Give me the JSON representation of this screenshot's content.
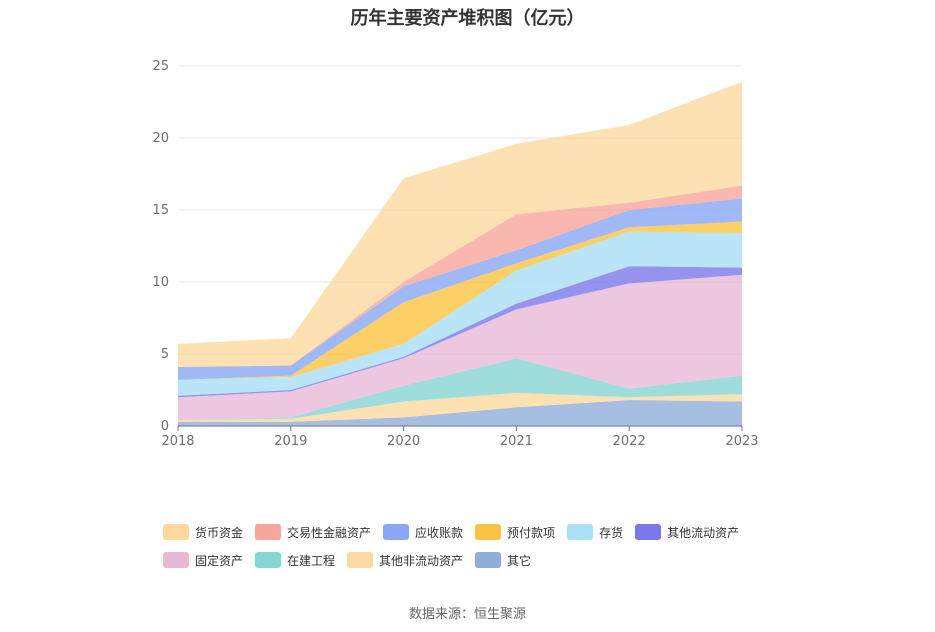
{
  "chart_data": {
    "type": "area",
    "stacked": true,
    "title": "历年主要资产堆积图（亿元）",
    "xlabel": "",
    "ylabel": "",
    "categories": [
      "2018",
      "2019",
      "2020",
      "2021",
      "2022",
      "2023"
    ],
    "ylim": [
      0,
      25
    ],
    "yticks": [
      0,
      5,
      10,
      15,
      20,
      25
    ],
    "grid": true,
    "legend_position": "bottom",
    "series": [
      {
        "name": "其它",
        "color": "#8eaed9",
        "values": [
          0.3,
          0.3,
          0.6,
          1.3,
          1.8,
          1.7
        ]
      },
      {
        "name": "其他非流动资产",
        "color": "#fcd9a0",
        "values": [
          0.1,
          0.2,
          1.1,
          1.0,
          0.2,
          0.5
        ]
      },
      {
        "name": "在建工程",
        "color": "#86d5d3",
        "values": [
          0.0,
          0.1,
          1.1,
          2.4,
          0.6,
          1.3
        ]
      },
      {
        "name": "固定资产",
        "color": "#e9b8d8",
        "values": [
          1.6,
          1.8,
          1.9,
          3.4,
          7.3,
          7.0
        ]
      },
      {
        "name": "其他流动资产",
        "color": "#7b78ea",
        "values": [
          0.1,
          0.1,
          0.1,
          0.4,
          1.2,
          0.5
        ]
      },
      {
        "name": "存货",
        "color": "#a9dff7",
        "values": [
          1.1,
          0.9,
          0.9,
          2.3,
          2.4,
          2.4
        ]
      },
      {
        "name": "预付款项",
        "color": "#fbc341",
        "values": [
          0.0,
          0.1,
          2.9,
          0.5,
          0.3,
          0.8
        ]
      },
      {
        "name": "应收账款",
        "color": "#8aa6f5",
        "values": [
          0.9,
          0.7,
          1.1,
          0.9,
          1.2,
          1.6
        ]
      },
      {
        "name": "交易性金融资产",
        "color": "#f7a59c",
        "values": [
          0.0,
          0.0,
          0.3,
          2.5,
          0.5,
          0.9
        ]
      },
      {
        "name": "货币资金",
        "color": "#fdd9a0",
        "values": [
          1.6,
          1.9,
          7.2,
          4.9,
          5.4,
          7.2
        ]
      }
    ],
    "legend_order": [
      "货币资金",
      "交易性金融资产",
      "应收账款",
      "预付款项",
      "存货",
      "其他流动资产",
      "固定资产",
      "在建工程",
      "其他非流动资产",
      "其它"
    ]
  },
  "source": "数据来源：恒生聚源"
}
